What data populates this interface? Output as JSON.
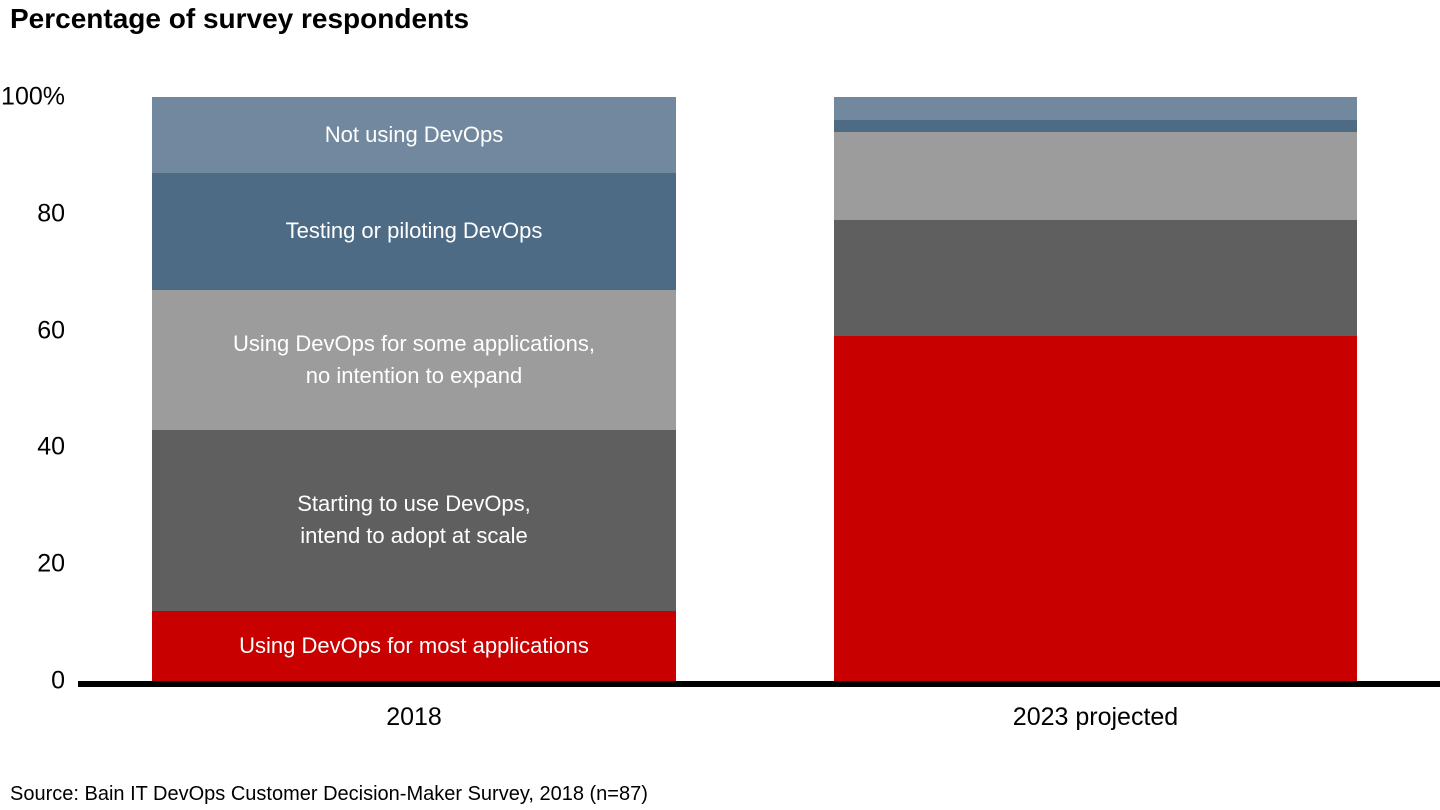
{
  "chart_data": {
    "type": "bar",
    "stacked": true,
    "title": "Percentage of survey respondents",
    "unit": "%",
    "categories": [
      "2018",
      "2023 projected"
    ],
    "series": [
      {
        "name": "Not using DevOps",
        "color": "#71889E",
        "values": [
          13,
          4
        ]
      },
      {
        "name": "Testing or piloting DevOps",
        "color": "#4E6B86",
        "values": [
          20,
          2
        ]
      },
      {
        "name": "Using DevOps for some applications,\nno intention to expand",
        "color": "#9C9C9C",
        "values": [
          24,
          15
        ]
      },
      {
        "name": "Starting to use DevOps,\nintend to adopt at scale",
        "color": "#5F5F5F",
        "values": [
          31,
          20
        ]
      },
      {
        "name": "Using DevOps for most applications",
        "color": "#C80000",
        "values": [
          12,
          59
        ]
      }
    ],
    "segment_labels_visible_for_category": "2018",
    "ylim": [
      0,
      100
    ],
    "y_ticks": [
      "100%",
      "80",
      "60",
      "40",
      "20",
      "0"
    ],
    "grid": false,
    "legend": "none (labels inside 2018 segments)"
  },
  "footer": {
    "source": "Source: Bain IT DevOps Customer Decision-Maker Survey, 2018 (n=87)"
  },
  "colors": {
    "background": "#FFFFFF",
    "axis": "#000000",
    "text": "#000000",
    "segment_label": "#FFFFFF",
    "accent_red": "#C80000"
  }
}
